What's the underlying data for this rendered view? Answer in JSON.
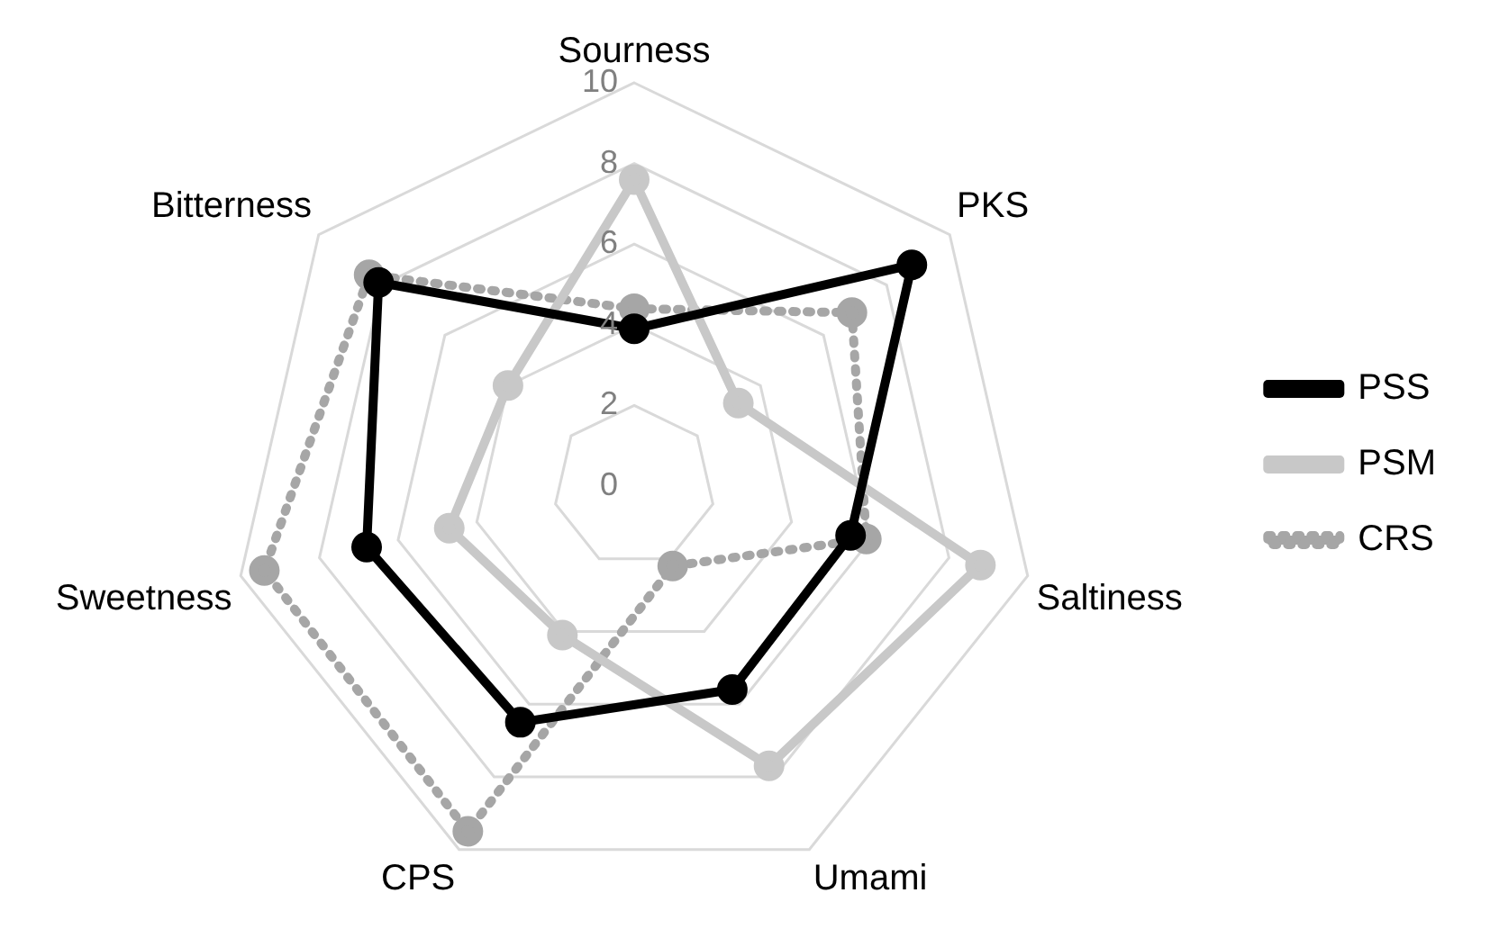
{
  "chart_data": {
    "type": "radar",
    "categories": [
      "Sourness",
      "PKS",
      "Saltiness",
      "Umami",
      "CPS",
      "Sweetness",
      "Bitterness"
    ],
    "series": [
      {
        "name": "PSS",
        "color": "#000000",
        "line_style": "solid",
        "values": [
          3.9,
          8.8,
          5.5,
          5.6,
          6.5,
          6.8,
          8.1
        ]
      },
      {
        "name": "PSM",
        "color": "#c8c8c8",
        "line_style": "solid",
        "values": [
          7.6,
          3.3,
          8.8,
          7.7,
          4.1,
          4.7,
          4.0
        ]
      },
      {
        "name": "CRS",
        "color": "#a6a6a6",
        "line_style": "dotted",
        "values": [
          4.4,
          6.9,
          5.9,
          2.2,
          9.5,
          9.4,
          8.4
        ]
      }
    ],
    "ylim": [
      0,
      10
    ],
    "yticks": [
      0,
      2,
      4,
      6,
      8,
      10
    ],
    "grid": true,
    "legend": "right",
    "marker": "circle"
  }
}
